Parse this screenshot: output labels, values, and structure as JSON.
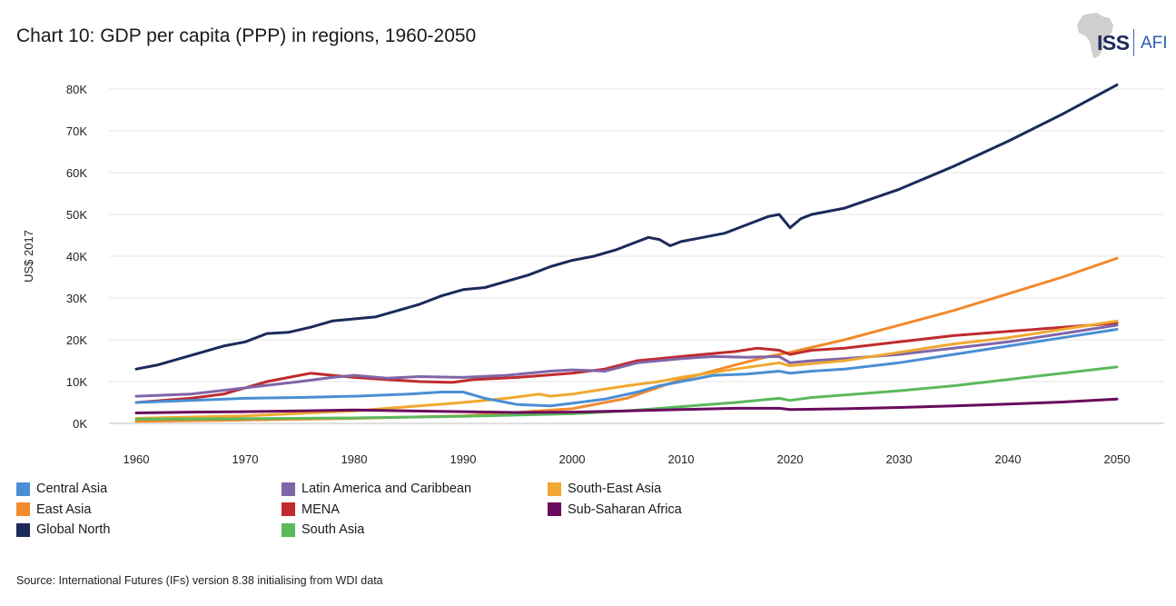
{
  "title": "Chart 10: GDP per capita (PPP) in regions, 1960-2050",
  "logo": {
    "primary": "ISS",
    "secondary": "AFI"
  },
  "source": "Source: International Futures (IFs) version 8.38 initialising from WDI data",
  "chart_data": {
    "type": "line",
    "title": "Chart 10: GDP per capita (PPP) in regions, 1960-2050",
    "xlabel": "",
    "ylabel": "US$ 2017",
    "xlim": [
      1960,
      2050
    ],
    "ylim": [
      0,
      80000
    ],
    "x_ticks": [
      1960,
      1970,
      1980,
      1990,
      2000,
      2010,
      2020,
      2030,
      2040,
      2050
    ],
    "x_tick_labels": [
      "1960",
      "1970",
      "1980",
      "1990",
      "2000",
      "2010",
      "2020",
      "2030",
      "2040",
      "2050"
    ],
    "y_ticks": [
      0,
      10000,
      20000,
      30000,
      40000,
      50000,
      60000,
      70000,
      80000
    ],
    "y_tick_labels": [
      "0K",
      "10K",
      "20K",
      "30K",
      "40K",
      "50K",
      "60K",
      "70K",
      "80K"
    ],
    "grid": true,
    "legend_position": "bottom",
    "series": [
      {
        "name": "Global North",
        "color": "#1b2a5b",
        "points": [
          [
            1960,
            13000
          ],
          [
            1962,
            14000
          ],
          [
            1964,
            15500
          ],
          [
            1966,
            17000
          ],
          [
            1968,
            18500
          ],
          [
            1970,
            19500
          ],
          [
            1972,
            21500
          ],
          [
            1974,
            21800
          ],
          [
            1976,
            23000
          ],
          [
            1978,
            24500
          ],
          [
            1980,
            25000
          ],
          [
            1982,
            25500
          ],
          [
            1984,
            27000
          ],
          [
            1986,
            28500
          ],
          [
            1988,
            30500
          ],
          [
            1990,
            32000
          ],
          [
            1992,
            32500
          ],
          [
            1994,
            34000
          ],
          [
            1996,
            35500
          ],
          [
            1998,
            37500
          ],
          [
            2000,
            39000
          ],
          [
            2002,
            40000
          ],
          [
            2004,
            41500
          ],
          [
            2006,
            43500
          ],
          [
            2007,
            44500
          ],
          [
            2008,
            44000
          ],
          [
            2009,
            42500
          ],
          [
            2010,
            43500
          ],
          [
            2012,
            44500
          ],
          [
            2014,
            45500
          ],
          [
            2016,
            47500
          ],
          [
            2018,
            49500
          ],
          [
            2019,
            50000
          ],
          [
            2020,
            46800
          ],
          [
            2021,
            49000
          ],
          [
            2022,
            50000
          ],
          [
            2025,
            51500
          ],
          [
            2030,
            56000
          ],
          [
            2035,
            61500
          ],
          [
            2040,
            67500
          ],
          [
            2045,
            74000
          ],
          [
            2050,
            81000
          ]
        ]
      },
      {
        "name": "East Asia",
        "color": "#f28a2e",
        "points": [
          [
            1960,
            500
          ],
          [
            1970,
            800
          ],
          [
            1980,
            1200
          ],
          [
            1990,
            1800
          ],
          [
            2000,
            3500
          ],
          [
            2005,
            6000
          ],
          [
            2010,
            10500
          ],
          [
            2015,
            14000
          ],
          [
            2018,
            16000
          ],
          [
            2020,
            17000
          ],
          [
            2025,
            20000
          ],
          [
            2030,
            23500
          ],
          [
            2035,
            27000
          ],
          [
            2040,
            31000
          ],
          [
            2045,
            35000
          ],
          [
            2050,
            39500
          ]
        ]
      },
      {
        "name": "MENA",
        "color": "#bf2b2e",
        "points": [
          [
            1960,
            5000
          ],
          [
            1965,
            6000
          ],
          [
            1968,
            7000
          ],
          [
            1970,
            8500
          ],
          [
            1972,
            10000
          ],
          [
            1974,
            11000
          ],
          [
            1976,
            12000
          ],
          [
            1978,
            11500
          ],
          [
            1980,
            11000
          ],
          [
            1983,
            10500
          ],
          [
            1986,
            10000
          ],
          [
            1989,
            9800
          ],
          [
            1991,
            10500
          ],
          [
            1995,
            11000
          ],
          [
            2000,
            12000
          ],
          [
            2003,
            13000
          ],
          [
            2006,
            15000
          ],
          [
            2008,
            15500
          ],
          [
            2010,
            16000
          ],
          [
            2012,
            16500
          ],
          [
            2015,
            17200
          ],
          [
            2017,
            18000
          ],
          [
            2019,
            17500
          ],
          [
            2020,
            16500
          ],
          [
            2022,
            17500
          ],
          [
            2025,
            18000
          ],
          [
            2030,
            19500
          ],
          [
            2035,
            21000
          ],
          [
            2040,
            22000
          ],
          [
            2045,
            23000
          ],
          [
            2050,
            24000
          ]
        ]
      },
      {
        "name": "Latin America and Caribbean",
        "color": "#8065a8",
        "points": [
          [
            1960,
            6500
          ],
          [
            1965,
            7000
          ],
          [
            1970,
            8500
          ],
          [
            1975,
            10000
          ],
          [
            1978,
            11000
          ],
          [
            1980,
            11500
          ],
          [
            1983,
            10800
          ],
          [
            1986,
            11200
          ],
          [
            1990,
            11000
          ],
          [
            1994,
            11500
          ],
          [
            1998,
            12500
          ],
          [
            2000,
            12800
          ],
          [
            2003,
            12500
          ],
          [
            2006,
            14500
          ],
          [
            2008,
            15000
          ],
          [
            2010,
            15500
          ],
          [
            2013,
            16000
          ],
          [
            2016,
            15800
          ],
          [
            2019,
            16000
          ],
          [
            2020,
            14500
          ],
          [
            2022,
            15000
          ],
          [
            2025,
            15500
          ],
          [
            2030,
            16500
          ],
          [
            2035,
            18000
          ],
          [
            2040,
            19500
          ],
          [
            2045,
            21500
          ],
          [
            2050,
            23500
          ]
        ]
      },
      {
        "name": "South-East Asia",
        "color": "#f0a830",
        "points": [
          [
            1960,
            1200
          ],
          [
            1970,
            1800
          ],
          [
            1980,
            3000
          ],
          [
            1985,
            4000
          ],
          [
            1990,
            5000
          ],
          [
            1994,
            6000
          ],
          [
            1997,
            7000
          ],
          [
            1998,
            6500
          ],
          [
            2000,
            7000
          ],
          [
            2005,
            9000
          ],
          [
            2008,
            10000
          ],
          [
            2010,
            11000
          ],
          [
            2015,
            13000
          ],
          [
            2019,
            14500
          ],
          [
            2020,
            13800
          ],
          [
            2025,
            15000
          ],
          [
            2030,
            17000
          ],
          [
            2035,
            19000
          ],
          [
            2040,
            20500
          ],
          [
            2045,
            22500
          ],
          [
            2050,
            24500
          ]
        ]
      },
      {
        "name": "Central Asia",
        "color": "#4a8fd4",
        "points": [
          [
            1960,
            5000
          ],
          [
            1965,
            5500
          ],
          [
            1970,
            6000
          ],
          [
            1975,
            6200
          ],
          [
            1980,
            6500
          ],
          [
            1985,
            7000
          ],
          [
            1988,
            7500
          ],
          [
            1990,
            7500
          ],
          [
            1992,
            6000
          ],
          [
            1995,
            4500
          ],
          [
            1998,
            4200
          ],
          [
            2000,
            4800
          ],
          [
            2003,
            5800
          ],
          [
            2006,
            7500
          ],
          [
            2008,
            9000
          ],
          [
            2010,
            10000
          ],
          [
            2013,
            11500
          ],
          [
            2016,
            11800
          ],
          [
            2019,
            12500
          ],
          [
            2020,
            12000
          ],
          [
            2022,
            12500
          ],
          [
            2025,
            13000
          ],
          [
            2030,
            14500
          ],
          [
            2035,
            16500
          ],
          [
            2040,
            18500
          ],
          [
            2045,
            20500
          ],
          [
            2050,
            22500
          ]
        ]
      },
      {
        "name": "South Asia",
        "color": "#5cb85c",
        "points": [
          [
            1960,
            1000
          ],
          [
            1970,
            1100
          ],
          [
            1980,
            1300
          ],
          [
            1990,
            1700
          ],
          [
            2000,
            2300
          ],
          [
            2005,
            3000
          ],
          [
            2010,
            4000
          ],
          [
            2015,
            5000
          ],
          [
            2019,
            6000
          ],
          [
            2020,
            5500
          ],
          [
            2022,
            6200
          ],
          [
            2025,
            6800
          ],
          [
            2030,
            7800
          ],
          [
            2035,
            9000
          ],
          [
            2040,
            10500
          ],
          [
            2045,
            12000
          ],
          [
            2050,
            13500
          ]
        ]
      },
      {
        "name": "Sub-Saharan Africa",
        "color": "#6a0a5f",
        "points": [
          [
            1960,
            2500
          ],
          [
            1965,
            2700
          ],
          [
            1970,
            2800
          ],
          [
            1975,
            3000
          ],
          [
            1980,
            3200
          ],
          [
            1985,
            3000
          ],
          [
            1990,
            2800
          ],
          [
            1995,
            2600
          ],
          [
            2000,
            2700
          ],
          [
            2005,
            3000
          ],
          [
            2010,
            3300
          ],
          [
            2015,
            3600
          ],
          [
            2019,
            3600
          ],
          [
            2020,
            3300
          ],
          [
            2025,
            3500
          ],
          [
            2030,
            3800
          ],
          [
            2035,
            4200
          ],
          [
            2040,
            4600
          ],
          [
            2045,
            5100
          ],
          [
            2050,
            5800
          ]
        ]
      }
    ]
  },
  "legend": [
    {
      "label": "Central Asia",
      "color": "#4a8fd4"
    },
    {
      "label": "Latin America and Caribbean",
      "color": "#8065a8"
    },
    {
      "label": "South-East Asia",
      "color": "#f0a830"
    },
    {
      "label": "East Asia",
      "color": "#f28a2e"
    },
    {
      "label": "MENA",
      "color": "#bf2b2e"
    },
    {
      "label": "Sub-Saharan Africa",
      "color": "#6a0a5f"
    },
    {
      "label": "Global North",
      "color": "#1b2a5b"
    },
    {
      "label": "South Asia",
      "color": "#5cb85c"
    }
  ]
}
